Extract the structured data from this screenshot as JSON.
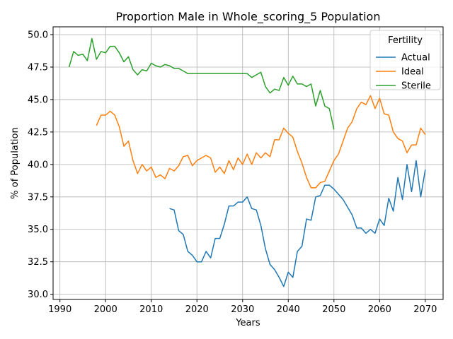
{
  "chart_data": {
    "type": "line",
    "title": "Proportion Male in Whole_scoring_5 Population",
    "xlabel": "Years",
    "ylabel": "% of Population",
    "xlim": [
      1988.5,
      2073.9
    ],
    "ylim": [
      29.6,
      50.6
    ],
    "xticks": [
      1990,
      2000,
      2010,
      2020,
      2030,
      2040,
      2050,
      2060,
      2070
    ],
    "yticks": [
      30.0,
      32.5,
      35.0,
      37.5,
      40.0,
      42.5,
      45.0,
      47.5,
      50.0
    ],
    "grid": true,
    "legend": {
      "title": "Fertility",
      "placement": "top-right"
    },
    "series": [
      {
        "name": "Actual",
        "color": "#1f77b4",
        "x": [
          2014,
          2015,
          2016,
          2017,
          2018,
          2019,
          2020,
          2021,
          2022,
          2023,
          2024,
          2025,
          2026,
          2027,
          2028,
          2029,
          2030,
          2031,
          2032,
          2033,
          2034,
          2035,
          2036,
          2037,
          2038,
          2039,
          2040,
          2041,
          2042,
          2043,
          2044,
          2045,
          2046,
          2047,
          2048,
          2049,
          2050,
          2051,
          2052,
          2053,
          2054,
          2055,
          2056,
          2057,
          2058,
          2059,
          2060,
          2061,
          2062,
          2063,
          2064,
          2065,
          2066,
          2067,
          2068,
          2069,
          2070
        ],
        "y": [
          36.6,
          36.5,
          34.9,
          34.6,
          33.3,
          33.0,
          32.5,
          32.5,
          33.3,
          32.8,
          34.3,
          34.3,
          35.4,
          36.8,
          36.8,
          37.1,
          37.1,
          37.5,
          36.6,
          36.5,
          35.3,
          33.5,
          32.3,
          31.9,
          31.3,
          30.6,
          31.7,
          31.3,
          33.3,
          33.7,
          35.8,
          35.7,
          37.5,
          37.6,
          38.4,
          38.4,
          38.1,
          37.7,
          37.3,
          36.7,
          36.1,
          35.1,
          35.1,
          34.7,
          35.0,
          34.7,
          35.8,
          35.3,
          37.4,
          36.4,
          39.0,
          37.3,
          40.0,
          37.9,
          40.3,
          37.5,
          39.6
        ]
      },
      {
        "name": "Ideal",
        "color": "#ff7f0e",
        "x": [
          1998,
          1999,
          2000,
          2001,
          2002,
          2003,
          2004,
          2005,
          2006,
          2007,
          2008,
          2009,
          2010,
          2011,
          2012,
          2013,
          2014,
          2015,
          2016,
          2017,
          2018,
          2019,
          2020,
          2021,
          2022,
          2023,
          2024,
          2025,
          2026,
          2027,
          2028,
          2029,
          2030,
          2031,
          2032,
          2033,
          2034,
          2035,
          2036,
          2037,
          2038,
          2039,
          2040,
          2041,
          2042,
          2043,
          2044,
          2045,
          2046,
          2047,
          2048,
          2049,
          2050,
          2051,
          2052,
          2053,
          2054,
          2055,
          2056,
          2057,
          2058,
          2059,
          2060,
          2061,
          2062,
          2063,
          2064,
          2065,
          2066,
          2067,
          2068,
          2069,
          2070
        ],
        "y": [
          43.0,
          43.8,
          43.8,
          44.1,
          43.8,
          42.9,
          41.4,
          41.8,
          40.3,
          39.3,
          40.0,
          39.5,
          39.8,
          39.0,
          39.2,
          38.9,
          39.7,
          39.5,
          39.9,
          40.6,
          40.7,
          39.9,
          40.3,
          40.5,
          40.7,
          40.5,
          39.4,
          39.8,
          39.3,
          40.3,
          39.6,
          40.5,
          40.0,
          40.8,
          40.0,
          40.9,
          40.5,
          40.9,
          40.6,
          41.9,
          41.9,
          42.8,
          42.4,
          42.1,
          41.0,
          40.1,
          39.0,
          38.2,
          38.2,
          38.6,
          38.7,
          39.5,
          40.3,
          40.8,
          41.8,
          42.8,
          43.3,
          44.3,
          44.8,
          44.6,
          45.3,
          44.3,
          45.1,
          43.9,
          43.8,
          42.5,
          42.0,
          41.8,
          40.9,
          41.5,
          41.5,
          42.8,
          42.3
        ]
      },
      {
        "name": "Sterile",
        "color": "#2ca02c",
        "x": [
          1992,
          1993,
          1994,
          1995,
          1996,
          1997,
          1998,
          1999,
          2000,
          2001,
          2002,
          2003,
          2004,
          2005,
          2006,
          2007,
          2008,
          2009,
          2010,
          2011,
          2012,
          2013,
          2014,
          2015,
          2016,
          2017,
          2018,
          2019,
          2020,
          2021,
          2022,
          2023,
          2024,
          2025,
          2026,
          2027,
          2028,
          2029,
          2030,
          2031,
          2032,
          2033,
          2034,
          2035,
          2036,
          2037,
          2038,
          2039,
          2040,
          2041,
          2042,
          2043,
          2044,
          2045,
          2046,
          2047,
          2048,
          2049,
          2050
        ],
        "y": [
          47.5,
          48.7,
          48.4,
          48.5,
          48.0,
          49.7,
          48.1,
          48.7,
          48.6,
          49.1,
          49.1,
          48.6,
          47.9,
          48.3,
          47.3,
          46.9,
          47.3,
          47.2,
          47.8,
          47.6,
          47.5,
          47.7,
          47.6,
          47.4,
          47.4,
          47.2,
          47.0,
          47.0,
          47.0,
          47.0,
          47.0,
          47.0,
          47.0,
          47.0,
          47.0,
          47.0,
          47.0,
          47.0,
          47.0,
          47.0,
          46.7,
          46.9,
          47.1,
          46.0,
          45.5,
          45.8,
          45.7,
          46.7,
          46.1,
          46.8,
          46.2,
          46.2,
          46.0,
          46.2,
          44.5,
          45.7,
          44.5,
          44.3,
          42.7
        ]
      }
    ]
  }
}
